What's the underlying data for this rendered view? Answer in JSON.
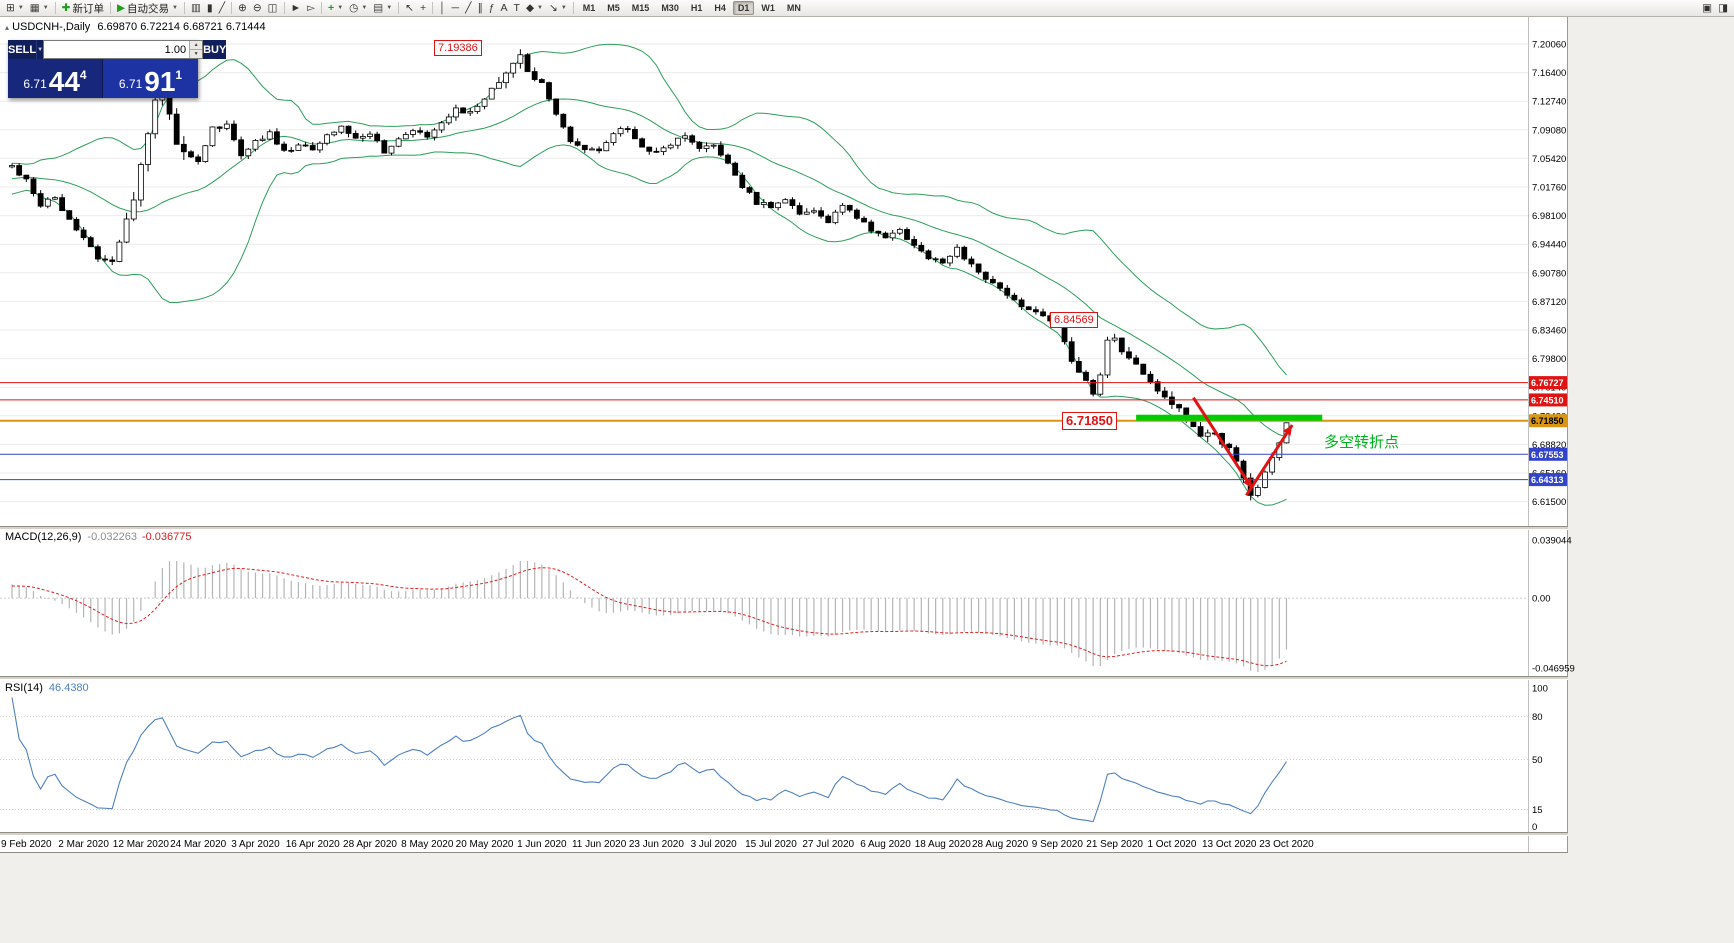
{
  "chart_title": {
    "symbol": "USDCNH-,Daily",
    "ohlc": "6.69870 6.72214 6.68721 6.71444"
  },
  "toolbar": {
    "items": [
      {
        "name": "new-chart-icon",
        "glyph": "⊞",
        "caret": true
      },
      {
        "name": "chart-profiles-icon",
        "glyph": "▦",
        "caret": true
      },
      {
        "sep": true
      },
      {
        "name": "new-order-button",
        "glyph": "✚",
        "glyph_color": "#1f9d1f",
        "label": "新订单"
      },
      {
        "sep": true
      },
      {
        "name": "autotrade-button",
        "glyph": "▶",
        "glyph_color": "#1f9d1f",
        "label": "自动交易",
        "caret": true
      },
      {
        "sep": true
      },
      {
        "name": "bars-chart-icon",
        "glyph": "▥"
      },
      {
        "name": "candles-chart-icon",
        "glyph": "▮"
      },
      {
        "name": "line-chart-icon",
        "glyph": "╱"
      },
      {
        "sep": true
      },
      {
        "name": "zoom-in-icon",
        "glyph": "⊕"
      },
      {
        "name": "zoom-out-icon",
        "glyph": "⊖"
      },
      {
        "name": "tile-windows-icon",
        "glyph": "◫"
      },
      {
        "sep": true
      },
      {
        "name": "auto-scroll-icon",
        "glyph": "►"
      },
      {
        "name": "chart-shift-icon",
        "glyph": "▻"
      },
      {
        "sep": true
      },
      {
        "name": "indicators-icon",
        "glyph": "+",
        "glyph_color": "#1f9d1f",
        "caret": true
      },
      {
        "name": "periods-icon",
        "glyph": "◷",
        "caret": true
      },
      {
        "name": "templates-icon",
        "glyph": "▤",
        "caret": true
      },
      {
        "sep": true
      },
      {
        "name": "cursor-icon",
        "glyph": "↖"
      },
      {
        "name": "crosshair-icon",
        "glyph": "+"
      },
      {
        "sep": true
      },
      {
        "name": "vertical-line-icon",
        "glyph": "│"
      },
      {
        "name": "horizontal-line-icon",
        "glyph": "─"
      },
      {
        "name": "trendline-icon",
        "glyph": "╱"
      },
      {
        "name": "channel-icon",
        "glyph": "∥"
      },
      {
        "name": "fibonacci-icon",
        "glyph": "ƒ"
      },
      {
        "name": "text-icon",
        "glyph": "A"
      },
      {
        "name": "label-icon",
        "glyph": "T"
      },
      {
        "name": "shapes-icon",
        "glyph": "◆",
        "caret": true
      },
      {
        "name": "arrow-tool-icon",
        "glyph": "↘",
        "caret": true
      },
      {
        "sep": true
      }
    ],
    "timeframes": [
      {
        "label": "M1"
      },
      {
        "label": "M5"
      },
      {
        "label": "M15"
      },
      {
        "label": "M30"
      },
      {
        "label": "H1"
      },
      {
        "label": "H4"
      },
      {
        "label": "D1",
        "active": true
      },
      {
        "label": "W1"
      },
      {
        "label": "MN"
      }
    ],
    "right_icons": [
      {
        "name": "data-window-icon",
        "glyph": "▣"
      },
      {
        "name": "popup-prices-icon",
        "glyph": "◨"
      }
    ]
  },
  "trade_panel": {
    "sell_label": "SELL",
    "buy_label": "BUY",
    "volume": "1.00",
    "sell_small": "6.71",
    "sell_big": "44",
    "sell_sup": "4",
    "buy_small": "6.71",
    "buy_big": "91",
    "buy_sup": "1"
  },
  "chart_data": {
    "type": "candlestick",
    "symbol": "USDCNH-",
    "timeframe": "Daily",
    "current_ohlc": {
      "open": "6.69870",
      "high": "6.72214",
      "low": "6.68721",
      "close": "6.71444"
    },
    "price_axis_ticks": [
      "7.20060",
      "7.16400",
      "7.12740",
      "7.09080",
      "7.05420",
      "7.01760",
      "6.98100",
      "6.94440",
      "6.90780",
      "6.87120",
      "6.83460",
      "6.79800",
      "6.76140",
      "6.72480",
      "6.68820",
      "6.65160",
      "6.61500"
    ],
    "date_axis": [
      {
        "label": "9 Feb 2020",
        "i": 2
      },
      {
        "label": "2 Mar 2020",
        "i": 10
      },
      {
        "label": "12 Mar 2020",
        "i": 18
      },
      {
        "label": "24 Mar 2020",
        "i": 26
      },
      {
        "label": "3 Apr 2020",
        "i": 34
      },
      {
        "label": "16 Apr 2020",
        "i": 42
      },
      {
        "label": "28 Apr 2020",
        "i": 50
      },
      {
        "label": "8 May 2020",
        "i": 58
      },
      {
        "label": "20 May 2020",
        "i": 66
      },
      {
        "label": "1 Jun 2020",
        "i": 74
      },
      {
        "label": "11 Jun 2020",
        "i": 82
      },
      {
        "label": "23 Jun 2020",
        "i": 90
      },
      {
        "label": "3 Jul 2020",
        "i": 98
      },
      {
        "label": "15 Jul 2020",
        "i": 106
      },
      {
        "label": "27 Jul 2020",
        "i": 114
      },
      {
        "label": "6 Aug 2020",
        "i": 122
      },
      {
        "label": "18 Aug 2020",
        "i": 130
      },
      {
        "label": "28 Aug 2020",
        "i": 138
      },
      {
        "label": "9 Sep 2020",
        "i": 146
      },
      {
        "label": "21 Sep 2020",
        "i": 154
      },
      {
        "label": "1 Oct 2020",
        "i": 162
      },
      {
        "label": "13 Oct 2020",
        "i": 170
      },
      {
        "label": "23 Oct 2020",
        "i": 178
      }
    ],
    "close_anchors": [
      [
        0,
        7.045
      ],
      [
        2,
        7.025
      ],
      [
        4,
        6.995
      ],
      [
        6,
        7.005
      ],
      [
        8,
        6.975
      ],
      [
        10,
        6.955
      ],
      [
        12,
        6.928
      ],
      [
        14,
        6.92
      ],
      [
        16,
        6.972
      ],
      [
        18,
        7.04
      ],
      [
        20,
        7.125
      ],
      [
        21,
        7.148
      ],
      [
        23,
        7.072
      ],
      [
        26,
        7.048
      ],
      [
        28,
        7.092
      ],
      [
        30,
        7.098
      ],
      [
        32,
        7.058
      ],
      [
        34,
        7.075
      ],
      [
        36,
        7.088
      ],
      [
        38,
        7.062
      ],
      [
        40,
        7.072
      ],
      [
        42,
        7.065
      ],
      [
        44,
        7.082
      ],
      [
        46,
        7.094
      ],
      [
        48,
        7.078
      ],
      [
        50,
        7.088
      ],
      [
        52,
        7.063
      ],
      [
        54,
        7.078
      ],
      [
        56,
        7.092
      ],
      [
        58,
        7.083
      ],
      [
        60,
        7.1
      ],
      [
        62,
        7.118
      ],
      [
        64,
        7.112
      ],
      [
        66,
        7.128
      ],
      [
        68,
        7.152
      ],
      [
        70,
        7.172
      ],
      [
        71,
        7.183
      ],
      [
        72,
        7.168
      ],
      [
        74,
        7.148
      ],
      [
        76,
        7.108
      ],
      [
        78,
        7.078
      ],
      [
        80,
        7.068
      ],
      [
        82,
        7.063
      ],
      [
        84,
        7.088
      ],
      [
        86,
        7.093
      ],
      [
        88,
        7.068
      ],
      [
        90,
        7.063
      ],
      [
        92,
        7.073
      ],
      [
        94,
        7.083
      ],
      [
        96,
        7.068
      ],
      [
        98,
        7.073
      ],
      [
        100,
        7.048
      ],
      [
        102,
        7.018
      ],
      [
        104,
        6.998
      ],
      [
        106,
        6.993
      ],
      [
        108,
        7.003
      ],
      [
        110,
        6.983
      ],
      [
        112,
        6.988
      ],
      [
        114,
        6.973
      ],
      [
        116,
        6.993
      ],
      [
        118,
        6.978
      ],
      [
        120,
        6.963
      ],
      [
        122,
        6.953
      ],
      [
        124,
        6.963
      ],
      [
        126,
        6.943
      ],
      [
        128,
        6.928
      ],
      [
        130,
        6.923
      ],
      [
        132,
        6.938
      ],
      [
        134,
        6.918
      ],
      [
        136,
        6.898
      ],
      [
        138,
        6.888
      ],
      [
        140,
        6.873
      ],
      [
        142,
        6.858
      ],
      [
        144,
        6.853
      ],
      [
        146,
        6.845
      ],
      [
        148,
        6.798
      ],
      [
        150,
        6.768
      ],
      [
        151,
        6.753
      ],
      [
        152,
        6.773
      ],
      [
        153,
        6.818
      ],
      [
        154,
        6.822
      ],
      [
        156,
        6.798
      ],
      [
        158,
        6.778
      ],
      [
        160,
        6.753
      ],
      [
        162,
        6.743
      ],
      [
        164,
        6.718
      ],
      [
        166,
        6.703
      ],
      [
        168,
        6.698
      ],
      [
        170,
        6.683
      ],
      [
        171,
        6.663
      ],
      [
        172,
        6.643
      ],
      [
        173,
        6.621
      ],
      [
        174,
        6.633
      ],
      [
        175,
        6.653
      ],
      [
        176,
        6.673
      ],
      [
        177,
        6.693
      ],
      [
        178,
        6.7144
      ]
    ],
    "indicators": {
      "bollinger": {
        "period": 20,
        "deviation": 2,
        "color": "#2e9e5a"
      },
      "macd": {
        "label": "MACD(12,26,9)",
        "value_main": "-0.032263",
        "value_signal": "-0.036775",
        "axis": [
          "0.039044",
          "0.00",
          "-0.046959"
        ],
        "histogram_color": "#b5b5b5",
        "signal_color": "#e02020"
      },
      "rsi": {
        "label": "RSI(14)",
        "value": "46.4380",
        "axis": [
          "100",
          "80",
          "50",
          "15",
          "0"
        ],
        "levels": [
          80,
          50,
          15
        ],
        "line_color": "#4f81bd"
      }
    },
    "levels": [
      {
        "price": 6.76727,
        "label": "6.76727",
        "color": "#e01313",
        "text_color": "#ffffff",
        "width": 1
      },
      {
        "price": 6.7451,
        "label": "6.74510",
        "color": "#e01313",
        "text_color": "#ffffff",
        "width": 1
      },
      {
        "price": 6.7185,
        "label": "6.71850",
        "color": "#d89614",
        "text_color": "#000000",
        "width": 2
      },
      {
        "price": 6.67553,
        "label": "6.67553",
        "color": "#3344cc",
        "text_color": "#ffffff",
        "width": 1
      },
      {
        "price": 6.64313,
        "label": "6.64313",
        "color": "#3344cc",
        "text_color": "#ffffff",
        "width": 1
      }
    ],
    "drawings": {
      "green_bar": {
        "price": 6.7185,
        "from_i": 157,
        "to_i": 183,
        "color": "#00cc00"
      },
      "arrows": [
        {
          "from_i": 165,
          "from_price": 6.748,
          "to_i": 173.2,
          "to_price": 6.632,
          "color": "#e01313"
        },
        {
          "from_i": 172.4,
          "from_price": 6.623,
          "to_i": 178.8,
          "to_price": 6.713,
          "color": "#e01313"
        }
      ]
    },
    "annotations": {
      "peak": "7.19386",
      "swing": "6.84569",
      "entry": "6.71850",
      "turning_note": "多空转折点"
    }
  }
}
